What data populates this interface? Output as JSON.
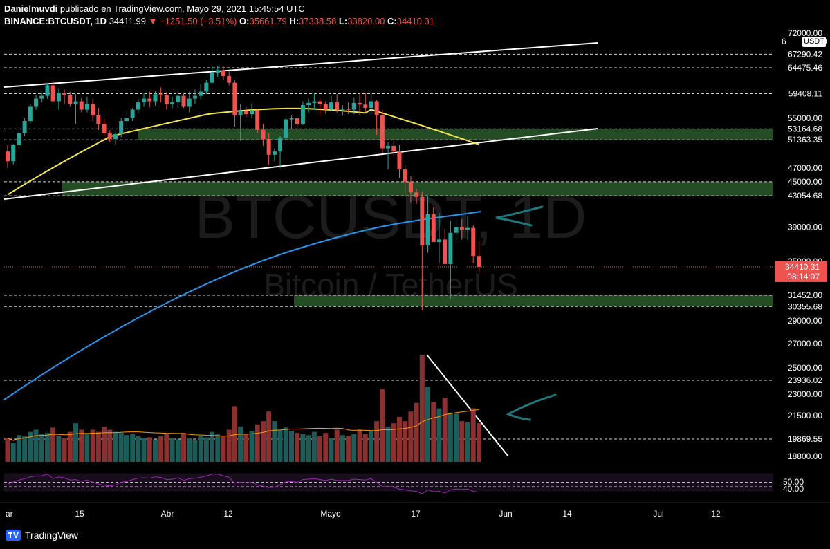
{
  "header": {
    "author": "Danielmuvdi",
    "published": "publicado en TradingView.com, Mayo 29, 2021 15:45:54 UTC",
    "symbol": "BINANCE:BTCUSDT, 1D",
    "last": "34411.99",
    "change": "−1251.50 (−3.51%)",
    "o_label": "O:",
    "o": "35661.79",
    "h_label": "H:",
    "h": "37338.58",
    "l_label": "L:",
    "l": "33820.00",
    "c_label": "C:",
    "c": "34410.31"
  },
  "footer": {
    "brand": "TradingView"
  },
  "currency_badge": "USDT",
  "watermark": {
    "symbol": "BTCUSDT, 1D",
    "name": "Bitcoin / TetherUS"
  },
  "colors": {
    "up": "#26a69a",
    "down": "#ef5350",
    "ma50": "#f5e649",
    "ma200": "#2196f3",
    "zone": "#2b5a2b",
    "rsi": "#9c27b0",
    "vol_ma": "#ff9800",
    "arrow": "#1a7a80"
  },
  "chart_data": {
    "type": "candlestick",
    "title": "BTCUSDT, 1D",
    "price_axis_ticks": [
      "72000.00",
      "67290.42",
      "64475.46",
      "59408.11",
      "55000.00",
      "53164.68",
      "51363.35",
      "47000.00",
      "45000.00",
      "43054.68",
      "39000.00",
      "35000.00",
      "31452.00",
      "30355.68",
      "29000.00",
      "27000.00",
      "25000.00",
      "23936.02",
      "23000.00",
      "21500.00",
      "19869.55",
      "18800.00"
    ],
    "price_axis_partial": [
      "6",
      "0"
    ],
    "current_price_label": "34410.31",
    "countdown": "08:14:07",
    "x_ticks": [
      "ar",
      "15",
      "Abr",
      "12",
      "Mayo",
      "17",
      "Jun",
      "14",
      "Jul",
      "12"
    ],
    "horizontal_levels": [
      67290.42,
      64475.46,
      59408.11,
      53164.68,
      51363.35,
      45000.0,
      43054.68,
      31452.0,
      30355.68,
      23936.02,
      19869.55
    ],
    "support_zones": [
      [
        51363.35,
        53164.68
      ],
      [
        43054.68,
        45000.0
      ],
      [
        30355.68,
        31452.0
      ]
    ],
    "candles": {
      "open": [
        49500,
        48000,
        50500,
        52500,
        54500,
        57000,
        58500,
        59000,
        61000,
        58000,
        59500,
        59200,
        57500,
        58000,
        56500,
        57500,
        55500,
        54000,
        52500,
        51500,
        52300,
        54500,
        55000,
        56500,
        57800,
        58500,
        58000,
        59300,
        59100,
        57500,
        57800,
        59000,
        57000,
        58500,
        59000,
        59800,
        61500,
        63500,
        64000,
        62800,
        61500,
        55500,
        56300,
        55700,
        56400,
        53000,
        51500,
        49000,
        49500,
        51700,
        54800,
        55000,
        54000,
        57300,
        57700,
        58000,
        57500,
        56500,
        57800,
        56500,
        56600,
        56500,
        57700,
        57400,
        56800,
        58000,
        55500,
        50000,
        50400,
        49500,
        46800,
        45000,
        43500,
        42900,
        36800,
        40600,
        37200,
        37500,
        34700,
        38300,
        39000,
        38700,
        38900,
        35600
      ],
      "high": [
        50500,
        50700,
        52800,
        55000,
        57500,
        59200,
        59500,
        61500,
        61800,
        60500,
        60200,
        59800,
        59300,
        58600,
        58800,
        58500,
        56800,
        55000,
        53000,
        52600,
        55000,
        56200,
        56800,
        58500,
        59500,
        59800,
        60000,
        60600,
        59700,
        58800,
        59800,
        59500,
        59800,
        60200,
        61300,
        62000,
        64800,
        64900,
        64800,
        63800,
        62000,
        57500,
        57000,
        57600,
        56600,
        54000,
        52500,
        50000,
        52000,
        55000,
        55500,
        55000,
        58000,
        58500,
        59500,
        58500,
        58000,
        59000,
        59300,
        57300,
        57800,
        58600,
        59300,
        59500,
        59800,
        58300,
        56500,
        51000,
        51200,
        50500,
        47500,
        45800,
        44000,
        43600,
        43100,
        41500,
        40800,
        38800,
        39800,
        40600,
        40000,
        40400,
        39200,
        37300
      ],
      "low": [
        47000,
        47500,
        50000,
        52000,
        54000,
        56500,
        57800,
        58500,
        57800,
        56500,
        57500,
        57000,
        54000,
        56000,
        56000,
        54500,
        53000,
        52000,
        51000,
        50600,
        51800,
        53500,
        54500,
        55800,
        57000,
        56900,
        57200,
        57800,
        56500,
        56700,
        56800,
        56800,
        56000,
        57500,
        58400,
        59300,
        61200,
        62500,
        62000,
        61000,
        53500,
        51200,
        55200,
        55000,
        52500,
        50400,
        47500,
        48000,
        47000,
        51500,
        53200,
        53000,
        53800,
        56000,
        56500,
        55500,
        55800,
        56300,
        56000,
        55400,
        55700,
        55700,
        55500,
        56000,
        55500,
        52200,
        49300,
        46800,
        48800,
        45500,
        42900,
        42200,
        42000,
        30000,
        36000,
        37200,
        34800,
        35500,
        31100,
        37400,
        37500,
        37500,
        34800,
        33800
      ],
      "close": [
        48000,
        50500,
        52500,
        54500,
        57000,
        58500,
        59000,
        61000,
        58000,
        59500,
        59200,
        57500,
        58000,
        56500,
        57500,
        55500,
        54000,
        52500,
        51500,
        52300,
        54500,
        55000,
        56500,
        57800,
        58500,
        58000,
        59300,
        59100,
        57500,
        57800,
        59000,
        57000,
        58500,
        59000,
        59800,
        61500,
        63500,
        64000,
        62800,
        61500,
        55500,
        56300,
        55700,
        56400,
        53000,
        51500,
        49000,
        49500,
        51700,
        54800,
        55000,
        54000,
        57300,
        57700,
        58000,
        57500,
        56500,
        57800,
        56500,
        56600,
        56500,
        57700,
        57400,
        56800,
        58000,
        55500,
        50000,
        50400,
        49500,
        46800,
        45000,
        43500,
        42900,
        36800,
        40600,
        37200,
        37500,
        34700,
        38300,
        39000,
        38700,
        38900,
        35600,
        34400
      ]
    },
    "volume": [
      0.22,
      0.18,
      0.25,
      0.24,
      0.28,
      0.3,
      0.26,
      0.27,
      0.32,
      0.24,
      0.22,
      0.28,
      0.36,
      0.3,
      0.26,
      0.3,
      0.28,
      0.33,
      0.3,
      0.28,
      0.27,
      0.25,
      0.26,
      0.24,
      0.22,
      0.23,
      0.21,
      0.24,
      0.26,
      0.22,
      0.21,
      0.27,
      0.22,
      0.2,
      0.24,
      0.23,
      0.28,
      0.26,
      0.24,
      0.3,
      0.52,
      0.33,
      0.26,
      0.29,
      0.35,
      0.38,
      0.47,
      0.38,
      0.3,
      0.32,
      0.29,
      0.27,
      0.26,
      0.25,
      0.28,
      0.24,
      0.27,
      0.22,
      0.3,
      0.25,
      0.24,
      0.26,
      0.3,
      0.26,
      0.29,
      0.38,
      0.68,
      0.33,
      0.36,
      0.42,
      0.38,
      0.47,
      0.55,
      1.0,
      0.7,
      0.56,
      0.5,
      0.6,
      0.46,
      0.45,
      0.38,
      0.37,
      0.5,
      0.36
    ],
    "rsi": [
      46,
      51,
      55,
      58,
      62,
      64,
      64,
      68,
      58,
      62,
      60,
      55,
      56,
      52,
      55,
      50,
      46,
      43,
      42,
      44,
      50,
      52,
      56,
      59,
      60,
      59,
      62,
      61,
      56,
      57,
      60,
      54,
      58,
      59,
      61,
      64,
      68,
      68,
      64,
      61,
      48,
      50,
      49,
      50,
      44,
      41,
      38,
      39,
      45,
      51,
      52,
      50,
      56,
      57,
      58,
      56,
      54,
      57,
      54,
      54,
      54,
      57,
      56,
      55,
      58,
      50,
      40,
      41,
      39,
      35,
      33,
      31,
      30,
      25,
      33,
      29,
      30,
      26,
      33,
      35,
      34,
      35,
      30,
      28
    ],
    "rsi_levels": [
      "50.00",
      "40.00"
    ]
  }
}
